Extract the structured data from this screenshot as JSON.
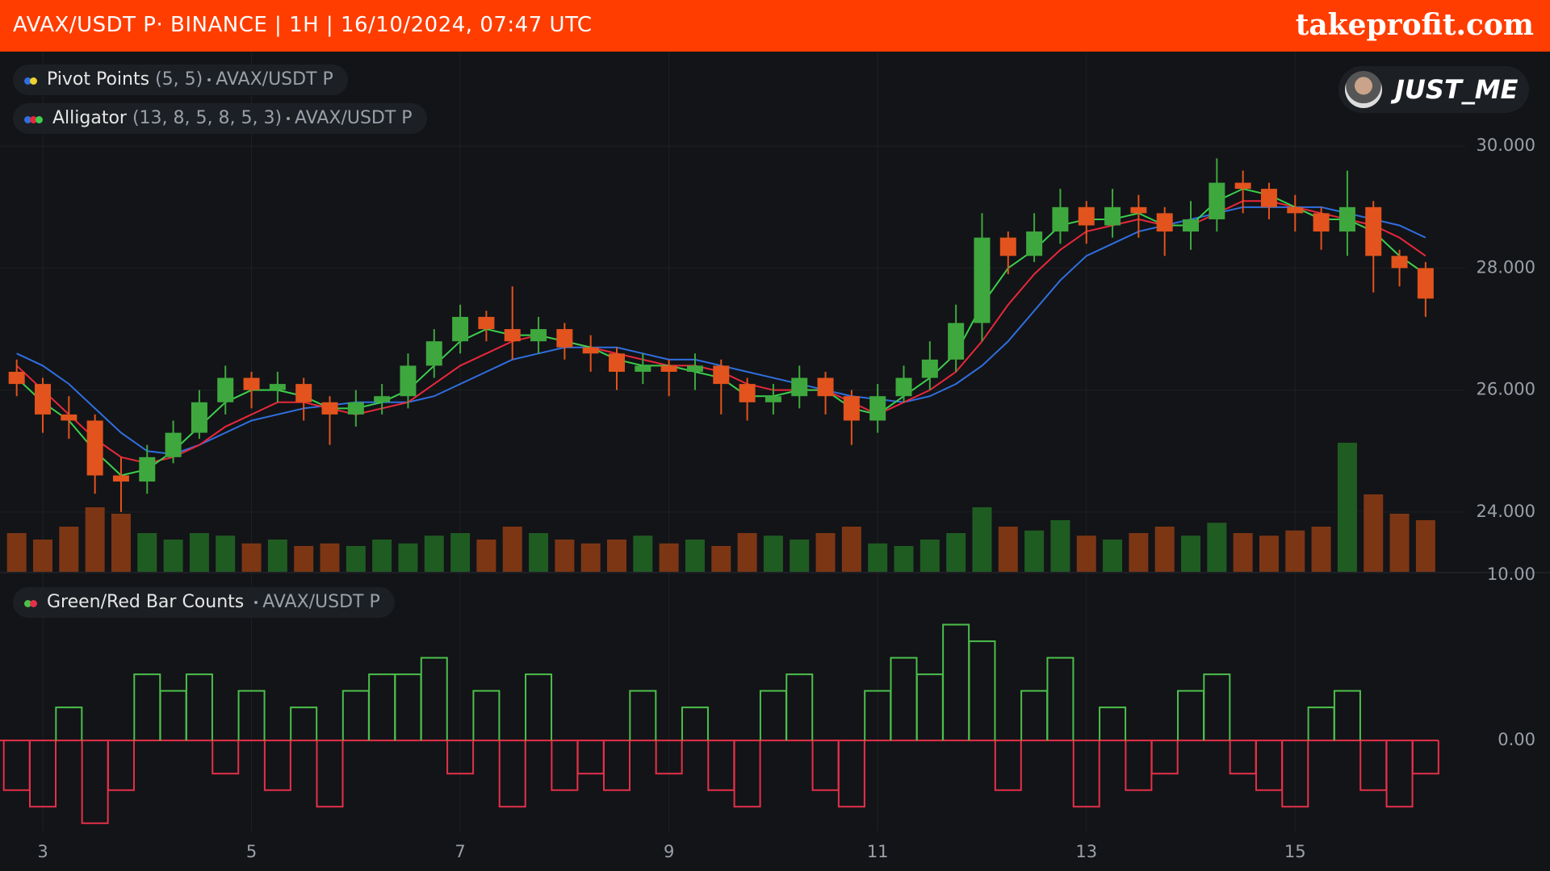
{
  "header": {
    "title": "AVAX/USDT P· BINANCE | 1H | 16/10/2024, 07:47 UTC",
    "brand": "takeprofit.com",
    "user": "JUST_ME"
  },
  "chart_data": [
    {
      "type": "candlestick",
      "pivot_points": {
        "name": "Pivot Points",
        "params": "(5, 5)",
        "symbol": "AVAX/USDT P"
      },
      "x": [
        2.75,
        3,
        3.25,
        3.5,
        3.75,
        4,
        4.25,
        4.5,
        4.75,
        5,
        5.25,
        5.5,
        5.75,
        6,
        6.25,
        6.5,
        6.75,
        7,
        7.25,
        7.5,
        7.75,
        8,
        8.25,
        8.5,
        8.75,
        9,
        9.25,
        9.5,
        9.75,
        10,
        10.25,
        10.5,
        10.75,
        11,
        11.25,
        11.5,
        11.75,
        12,
        12.25,
        12.5,
        12.75,
        13,
        13.25,
        13.5,
        13.75,
        14,
        14.25,
        14.5,
        14.75,
        15,
        15.25,
        15.5,
        15.75,
        16,
        16.25
      ],
      "open": [
        26.3,
        26.1,
        25.6,
        25.5,
        24.6,
        24.5,
        24.9,
        25.3,
        25.8,
        26.2,
        26.0,
        26.1,
        25.8,
        25.6,
        25.8,
        25.9,
        26.4,
        26.8,
        27.2,
        27.0,
        26.8,
        27.0,
        26.7,
        26.6,
        26.3,
        26.4,
        26.3,
        26.4,
        26.1,
        25.8,
        25.9,
        26.2,
        25.9,
        25.5,
        25.9,
        26.2,
        26.5,
        27.1,
        28.5,
        28.2,
        28.6,
        29.0,
        28.7,
        29.0,
        28.9,
        28.6,
        28.8,
        29.4,
        29.3,
        29.0,
        28.9,
        28.6,
        29.0,
        28.2,
        28.0
      ],
      "high": [
        26.5,
        26.2,
        25.9,
        25.6,
        24.9,
        25.1,
        25.5,
        26.0,
        26.4,
        26.3,
        26.3,
        26.2,
        25.9,
        26.0,
        26.1,
        26.6,
        27.0,
        27.4,
        27.3,
        27.7,
        27.2,
        27.1,
        26.9,
        26.7,
        26.6,
        26.5,
        26.6,
        26.5,
        26.2,
        26.1,
        26.4,
        26.3,
        26.0,
        26.1,
        26.4,
        26.8,
        27.4,
        28.9,
        28.6,
        28.9,
        29.3,
        29.1,
        29.3,
        29.2,
        29.0,
        29.1,
        29.8,
        29.6,
        29.4,
        29.2,
        29.0,
        29.6,
        29.1,
        28.3,
        28.1
      ],
      "low": [
        25.9,
        25.3,
        25.2,
        24.3,
        24.0,
        24.3,
        24.8,
        25.2,
        25.6,
        25.7,
        25.8,
        25.5,
        25.1,
        25.4,
        25.6,
        25.7,
        26.2,
        26.6,
        26.8,
        26.5,
        26.6,
        26.5,
        26.3,
        26.0,
        26.1,
        25.9,
        26.0,
        25.6,
        25.5,
        25.6,
        25.7,
        25.6,
        25.1,
        25.3,
        25.8,
        26.0,
        26.3,
        26.8,
        27.9,
        28.1,
        28.4,
        28.4,
        28.5,
        28.5,
        28.2,
        28.3,
        28.6,
        28.9,
        28.8,
        28.6,
        28.3,
        28.2,
        27.6,
        27.7,
        27.2
      ],
      "close": [
        26.1,
        25.6,
        25.5,
        24.6,
        24.5,
        24.9,
        25.3,
        25.8,
        26.2,
        26.0,
        26.1,
        25.8,
        25.6,
        25.8,
        25.9,
        26.4,
        26.8,
        27.2,
        27.0,
        26.8,
        27.0,
        26.7,
        26.6,
        26.3,
        26.4,
        26.3,
        26.4,
        26.1,
        25.8,
        25.9,
        26.2,
        25.9,
        25.5,
        25.9,
        26.2,
        26.5,
        27.1,
        28.5,
        28.2,
        28.6,
        29.0,
        28.7,
        29.0,
        28.9,
        28.6,
        28.8,
        29.4,
        29.3,
        29.0,
        28.9,
        28.6,
        29.0,
        28.2,
        28.0,
        27.5
      ],
      "up_color": "#3ea83e",
      "down_color": "#e2531d",
      "alligator": {
        "name": "Alligator",
        "params": "(13, 8, 5, 8, 5, 3)",
        "symbol": "AVAX/USDT P",
        "lines": [
          {
            "color": "#2f6fe0",
            "values": [
              26.6,
              26.4,
              26.1,
              25.7,
              25.3,
              25.0,
              24.95,
              25.1,
              25.3,
              25.5,
              25.6,
              25.7,
              25.75,
              25.8,
              25.8,
              25.8,
              25.9,
              26.1,
              26.3,
              26.5,
              26.6,
              26.7,
              26.7,
              26.7,
              26.6,
              26.5,
              26.5,
              26.4,
              26.3,
              26.2,
              26.1,
              26.0,
              25.9,
              25.85,
              25.8,
              25.9,
              26.1,
              26.4,
              26.8,
              27.3,
              27.8,
              28.2,
              28.4,
              28.6,
              28.7,
              28.8,
              28.9,
              29.0,
              29.0,
              29.0,
              29.0,
              28.9,
              28.8,
              28.7,
              28.5
            ]
          },
          {
            "color": "#e8283c",
            "values": [
              26.4,
              26.0,
              25.6,
              25.2,
              24.9,
              24.8,
              24.9,
              25.1,
              25.4,
              25.6,
              25.8,
              25.8,
              25.7,
              25.6,
              25.7,
              25.8,
              26.1,
              26.4,
              26.6,
              26.8,
              26.9,
              26.8,
              26.7,
              26.6,
              26.5,
              26.4,
              26.4,
              26.3,
              26.1,
              26.0,
              26.0,
              26.0,
              25.8,
              25.6,
              25.8,
              26.0,
              26.3,
              26.8,
              27.4,
              27.9,
              28.3,
              28.6,
              28.7,
              28.8,
              28.7,
              28.7,
              28.9,
              29.1,
              29.1,
              29.0,
              28.9,
              28.8,
              28.7,
              28.5,
              28.2
            ]
          },
          {
            "color": "#3ccf4e",
            "values": [
              26.2,
              25.8,
              25.5,
              25.0,
              24.6,
              24.7,
              25.0,
              25.4,
              25.8,
              26.0,
              26.0,
              25.9,
              25.7,
              25.7,
              25.8,
              26.0,
              26.4,
              26.8,
              27.0,
              26.9,
              26.9,
              26.8,
              26.7,
              26.5,
              26.4,
              26.4,
              26.3,
              26.2,
              25.9,
              25.9,
              26.0,
              26.0,
              25.7,
              25.6,
              25.9,
              26.2,
              26.6,
              27.4,
              28.0,
              28.3,
              28.7,
              28.8,
              28.8,
              28.9,
              28.7,
              28.7,
              29.1,
              29.3,
              29.2,
              29.0,
              28.8,
              28.8,
              28.6,
              28.2,
              27.9
            ]
          }
        ]
      },
      "volume": {
        "values": [
          30,
          25,
          35,
          50,
          45,
          30,
          25,
          30,
          28,
          22,
          25,
          20,
          22,
          20,
          25,
          22,
          28,
          30,
          25,
          35,
          30,
          25,
          22,
          25,
          28,
          22,
          25,
          20,
          30,
          28,
          25,
          30,
          35,
          22,
          20,
          25,
          30,
          50,
          35,
          32,
          40,
          28,
          25,
          30,
          35,
          28,
          38,
          30,
          28,
          32,
          35,
          100,
          60,
          45,
          40
        ],
        "ylim": [
          0,
          100
        ],
        "up_color": "#1f5c22",
        "down_color": "#7c3614"
      },
      "xlim": [
        2.59,
        16.63
      ],
      "xticks": [
        3,
        5,
        7,
        9,
        11,
        13,
        15
      ],
      "ylim": [
        23.02,
        31.55
      ],
      "yticks": [
        {
          "value": 30,
          "label": "30.000"
        },
        {
          "value": 28,
          "label": "28.000"
        },
        {
          "value": 26,
          "label": "26.000"
        },
        {
          "value": 24,
          "label": "24.000"
        }
      ],
      "grid": true
    },
    {
      "type": "step",
      "title": "Green/Red Bar Counts",
      "symbol": "AVAX/USDT P",
      "values": [
        -3,
        -4,
        2,
        -5,
        -3,
        4,
        3,
        4,
        -2,
        3,
        -3,
        2,
        -4,
        3,
        4,
        4,
        5,
        -2,
        3,
        -4,
        4,
        -3,
        -2,
        -3,
        3,
        -2,
        2,
        -3,
        -4,
        3,
        4,
        -3,
        -4,
        3,
        5,
        4,
        7,
        6,
        -3,
        3,
        5,
        -4,
        2,
        -3,
        -2,
        3,
        4,
        -2,
        -3,
        -4,
        2,
        3,
        -3,
        -4,
        -2
      ],
      "up_color": "#4bbf4b",
      "down_color": "#e5304a",
      "ylim": [
        -5.5,
        10
      ],
      "yticks": [
        {
          "value": 10,
          "label": "10.00"
        },
        {
          "value": 0,
          "label": "0.00"
        }
      ]
    }
  ]
}
